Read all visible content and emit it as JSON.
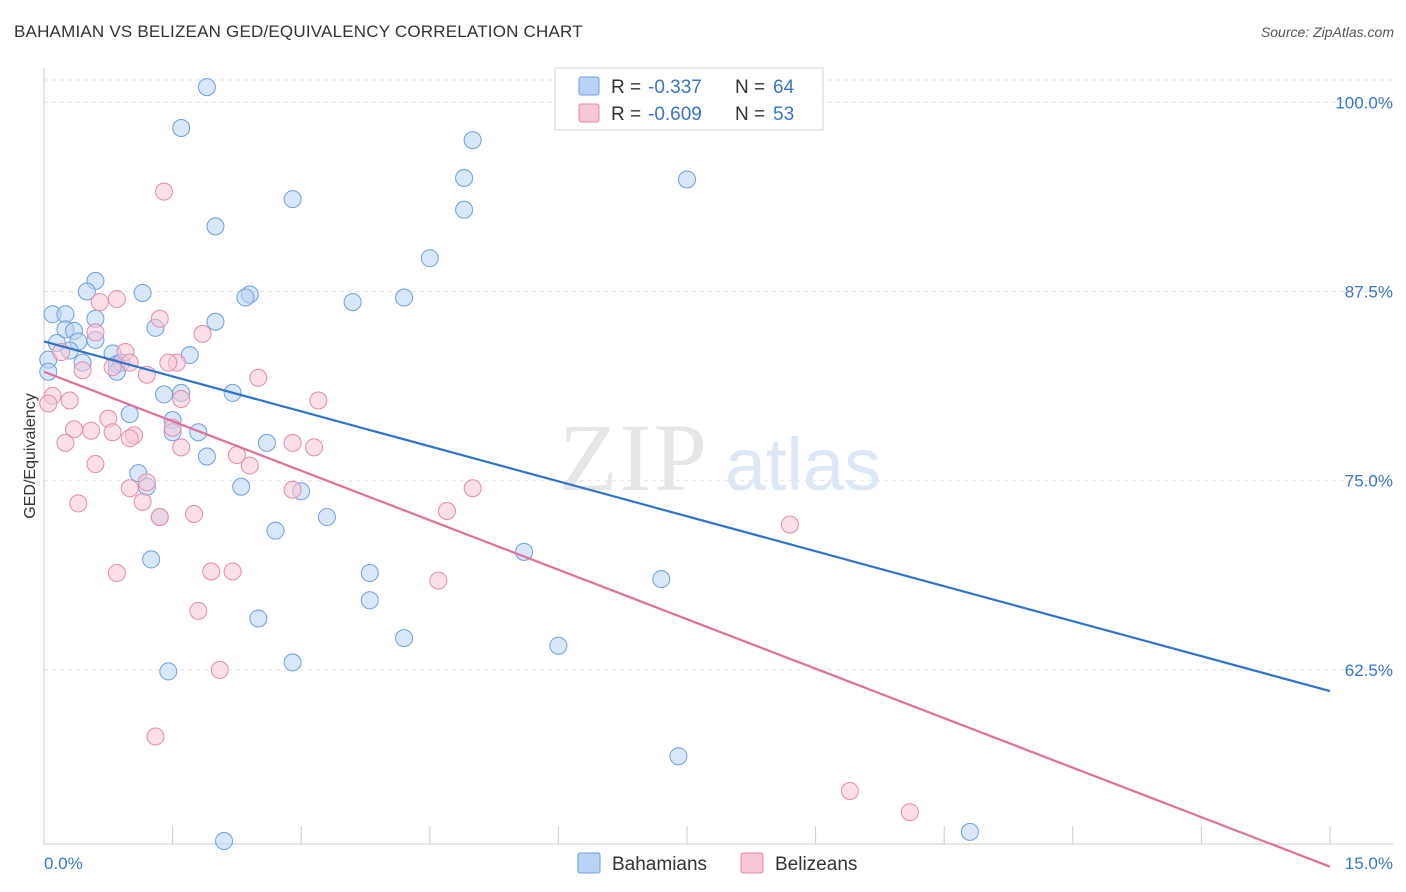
{
  "chart_data": {
    "type": "scatter",
    "title": "BAHAMIAN VS BELIZEAN GED/EQUIVALENCY CORRELATION CHART",
    "source": "Source: ZipAtlas.com",
    "xlabel": "",
    "ylabel": "GED/Equivalency",
    "xlim": [
      0,
      15
    ],
    "ylim": [
      51,
      102
    ],
    "x_tick_labels": {
      "min": "0.0%",
      "max": "15.0%"
    },
    "y_ticks": [
      100.0,
      87.5,
      75.0,
      62.5
    ],
    "y_tick_labels": [
      "100.0%",
      "87.5%",
      "75.0%",
      "62.5%"
    ],
    "watermark": {
      "zip": "ZIP",
      "atlas": "atlas"
    },
    "colors": {
      "bahamian_fill": "#b8d3f5",
      "bahamian_stroke": "#6f9fd8",
      "bahamian_line": "#2f73cc",
      "belizean_fill": "#f7c7d6",
      "belizean_stroke": "#e38bab",
      "belizean_line": "#e0709a",
      "text_blue": "#3a74c8",
      "text_dark": "#333333",
      "grid": "#e3e3e3"
    },
    "stats_box": {
      "rows": [
        {
          "r_label": "R = ",
          "r_value": "-0.337",
          "n_label": "N = ",
          "n_value": "64"
        },
        {
          "r_label": "R = ",
          "r_value": "-0.609",
          "n_label": "N = ",
          "n_value": "53"
        }
      ]
    },
    "legend": [
      "Bahamians",
      "Belizeans"
    ],
    "series": [
      {
        "name": "Bahamians",
        "trend": {
          "x": [
            0.0,
            15.0
          ],
          "y": [
            84.2,
            61.1
          ]
        },
        "points": [
          [
            1.9,
            101.0
          ],
          [
            1.6,
            98.3
          ],
          [
            5.0,
            97.5
          ],
          [
            4.9,
            95.0
          ],
          [
            7.5,
            94.9
          ],
          [
            2.9,
            93.6
          ],
          [
            4.9,
            92.9
          ],
          [
            2.0,
            91.8
          ],
          [
            4.5,
            89.7
          ],
          [
            0.6,
            88.2
          ],
          [
            0.5,
            87.5
          ],
          [
            1.15,
            87.4
          ],
          [
            2.4,
            87.3
          ],
          [
            2.35,
            87.1
          ],
          [
            4.2,
            87.1
          ],
          [
            3.6,
            86.8
          ],
          [
            0.1,
            86.0
          ],
          [
            0.25,
            86.0
          ],
          [
            0.6,
            85.7
          ],
          [
            2.0,
            85.5
          ],
          [
            1.3,
            85.1
          ],
          [
            0.25,
            85.0
          ],
          [
            0.35,
            84.9
          ],
          [
            0.6,
            84.3
          ],
          [
            0.4,
            84.2
          ],
          [
            0.15,
            84.1
          ],
          [
            0.3,
            83.6
          ],
          [
            0.8,
            83.4
          ],
          [
            1.7,
            83.3
          ],
          [
            0.05,
            83.0
          ],
          [
            0.45,
            82.8
          ],
          [
            0.85,
            82.7
          ],
          [
            0.9,
            82.8
          ],
          [
            0.85,
            82.2
          ],
          [
            1.6,
            80.8
          ],
          [
            2.2,
            80.8
          ],
          [
            1.4,
            80.7
          ],
          [
            1.0,
            79.4
          ],
          [
            1.5,
            79.0
          ],
          [
            1.5,
            78.2
          ],
          [
            1.8,
            78.2
          ],
          [
            2.6,
            77.5
          ],
          [
            1.9,
            76.6
          ],
          [
            1.1,
            75.5
          ],
          [
            1.2,
            74.6
          ],
          [
            2.3,
            74.6
          ],
          [
            3.0,
            74.3
          ],
          [
            1.35,
            72.6
          ],
          [
            3.3,
            72.6
          ],
          [
            2.7,
            71.7
          ],
          [
            5.6,
            70.3
          ],
          [
            1.25,
            69.8
          ],
          [
            3.8,
            68.9
          ],
          [
            7.2,
            68.5
          ],
          [
            3.8,
            67.1
          ],
          [
            2.5,
            65.9
          ],
          [
            4.2,
            64.6
          ],
          [
            6.0,
            64.1
          ],
          [
            2.9,
            63.0
          ],
          [
            1.45,
            62.4
          ],
          [
            7.4,
            56.8
          ],
          [
            10.8,
            51.8
          ],
          [
            2.1,
            51.2
          ],
          [
            0.05,
            82.2
          ]
        ]
      },
      {
        "name": "Belizeans",
        "trend": {
          "x": [
            0.0,
            15.0
          ],
          "y": [
            82.2,
            49.5
          ]
        },
        "points": [
          [
            1.4,
            94.1
          ],
          [
            0.85,
            87.0
          ],
          [
            0.65,
            86.8
          ],
          [
            1.35,
            85.7
          ],
          [
            0.6,
            84.8
          ],
          [
            1.85,
            84.7
          ],
          [
            0.2,
            83.5
          ],
          [
            0.95,
            83.5
          ],
          [
            1.55,
            82.8
          ],
          [
            1.45,
            82.8
          ],
          [
            1.0,
            82.8
          ],
          [
            0.8,
            82.5
          ],
          [
            1.2,
            82.0
          ],
          [
            0.45,
            82.3
          ],
          [
            2.5,
            81.8
          ],
          [
            0.1,
            80.6
          ],
          [
            0.3,
            80.3
          ],
          [
            0.05,
            80.1
          ],
          [
            1.6,
            80.4
          ],
          [
            3.2,
            80.3
          ],
          [
            0.75,
            79.1
          ],
          [
            1.5,
            78.5
          ],
          [
            0.35,
            78.4
          ],
          [
            0.55,
            78.3
          ],
          [
            0.8,
            78.2
          ],
          [
            1.05,
            78.0
          ],
          [
            1.0,
            77.8
          ],
          [
            0.25,
            77.5
          ],
          [
            2.9,
            77.5
          ],
          [
            3.15,
            77.2
          ],
          [
            1.6,
            77.2
          ],
          [
            2.25,
            76.7
          ],
          [
            0.6,
            76.1
          ],
          [
            2.4,
            76.0
          ],
          [
            1.2,
            74.9
          ],
          [
            1.0,
            74.5
          ],
          [
            5.0,
            74.5
          ],
          [
            2.9,
            74.4
          ],
          [
            1.15,
            73.6
          ],
          [
            0.4,
            73.5
          ],
          [
            4.7,
            73.0
          ],
          [
            1.35,
            72.6
          ],
          [
            1.75,
            72.8
          ],
          [
            8.7,
            72.1
          ],
          [
            2.2,
            69.0
          ],
          [
            1.95,
            69.0
          ],
          [
            0.85,
            68.9
          ],
          [
            4.6,
            68.4
          ],
          [
            1.8,
            66.4
          ],
          [
            2.05,
            62.5
          ],
          [
            1.3,
            58.1
          ],
          [
            9.4,
            54.5
          ],
          [
            10.1,
            53.1
          ]
        ]
      }
    ]
  }
}
